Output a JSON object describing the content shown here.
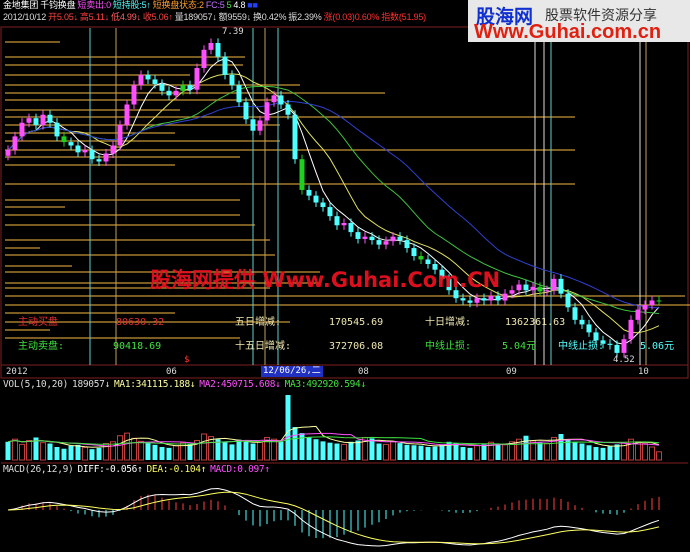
{
  "header": {
    "stock_name": "金地集团",
    "indicator_name": "千钧换盘",
    "short_sell": "短卖出:0",
    "short_hold": "短持股:5↑",
    "short_state": "短换盘状态:2",
    "fc": "FC:5",
    "v1": "5",
    "v2": "4.8",
    "v3": "■■",
    "date": "2012/10/12",
    "open": "开5.05↓",
    "high": "高5.11↓",
    "low": "低4.99↓",
    "close": "收5.06↑",
    "volume": "量189057↓",
    "amount": "额9559↓",
    "turnover": "换0.42%",
    "amplitude": "振2.39%",
    "change": "涨(0.03)0.60%",
    "index": "指数(51.95)"
  },
  "logo": {
    "name": "股海网",
    "slogan": "股票软件资源分享",
    "url": "Www.Guhai.com.cn"
  },
  "watermark": "股海网提供 Www.Guhai.Com.CN",
  "price_labels": {
    "high": "7.39",
    "low": "4.52",
    "marker": "$"
  },
  "info_table": {
    "buy_label": "主动买盘",
    "buy_value": "80630.32",
    "sell_label": "主动卖盘:",
    "sell_value": "90418.69",
    "d5_label": "五日增减:",
    "d5_value": "170545.69",
    "d15_label": "十五日增减:",
    "d15_value": "372706.08",
    "d10_label": "十日增减:",
    "d10_value": "1362361.63",
    "stop1_label": "中线止损:",
    "stop1_value": "5.04元",
    "stop2_label": "中线止损:",
    "stop2_value": "5.06元"
  },
  "date_axis": [
    "2012",
    "06",
    "12/06/26,二",
    "08",
    "09",
    "10"
  ],
  "volume_panel": {
    "title": "VOL(5,10,20)",
    "vol": "189057↓",
    "ma1": "MA1:341115.188↓",
    "ma2": "MA2:450715.608↓",
    "ma3": "MA3:492920.594↓"
  },
  "macd_panel": {
    "title": "MACD(26,12,9)",
    "diff": "DIFF:-0.056↑",
    "dea": "DEA:-0.104↑",
    "macd": "MACD:0.097↑"
  },
  "colors": {
    "up": "#ff50ff",
    "down": "#50ffff",
    "signal": "#20d020",
    "level_line": "#e8b040",
    "background": "#000000"
  },
  "chart_data": {
    "type": "candlestick",
    "price_range": [
      4.52,
      7.39
    ],
    "closes": [
      6.38,
      6.5,
      6.62,
      6.66,
      6.6,
      6.69,
      6.62,
      6.5,
      6.45,
      6.42,
      6.36,
      6.38,
      6.3,
      6.28,
      6.35,
      6.42,
      6.6,
      6.78,
      6.95,
      7.04,
      7.0,
      6.96,
      6.9,
      6.86,
      6.9,
      6.95,
      6.91,
      7.1,
      7.26,
      7.32,
      7.2,
      7.04,
      6.95,
      6.8,
      6.65,
      6.55,
      6.64,
      6.8,
      6.86,
      6.78,
      6.69,
      6.3,
      6.03,
      5.98,
      5.92,
      5.88,
      5.8,
      5.72,
      5.74,
      5.66,
      5.6,
      5.62,
      5.59,
      5.55,
      5.58,
      5.62,
      5.59,
      5.52,
      5.45,
      5.42,
      5.38,
      5.33,
      5.25,
      5.15,
      5.08,
      5.06,
      5.04,
      5.08,
      5.06,
      5.1,
      5.06,
      5.12,
      5.15,
      5.2,
      5.15,
      5.18,
      5.14,
      5.15,
      5.25,
      5.12,
      5.0,
      4.89,
      4.85,
      4.78,
      4.71,
      4.68,
      4.67,
      4.6,
      4.72,
      4.89,
      4.98,
      5.02,
      5.06,
      5.06
    ],
    "volumes": [
      420000,
      480000,
      360000,
      450000,
      520000,
      400000,
      380000,
      300000,
      260000,
      330000,
      350000,
      290000,
      250000,
      280000,
      380000,
      420000,
      560000,
      620000,
      500000,
      430000,
      390000,
      350000,
      300000,
      280000,
      330000,
      400000,
      380000,
      450000,
      600000,
      540000,
      480000,
      420000,
      360000,
      470000,
      420000,
      380000,
      410000,
      520000,
      480000,
      420000,
      1500000,
      760000,
      620000,
      520000,
      480000,
      430000,
      400000,
      380000,
      360000,
      420000,
      450000,
      520000,
      500000,
      380000,
      360000,
      420000,
      390000,
      350000,
      340000,
      330000,
      300000,
      310000,
      360000,
      420000,
      380000,
      300000,
      280000,
      330000,
      360000,
      410000,
      380000,
      350000,
      420000,
      480000,
      560000,
      440000,
      400000,
      380000,
      520000,
      600000,
      480000,
      420000,
      380000,
      340000,
      300000,
      280000,
      320000,
      360000,
      400000,
      480000,
      420000,
      380000,
      300000,
      189057
    ]
  }
}
